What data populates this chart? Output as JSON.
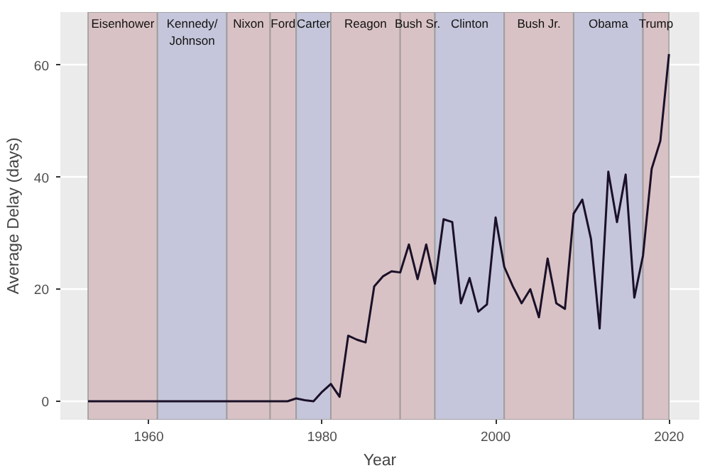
{
  "chart_data": {
    "type": "line",
    "xlabel": "Year",
    "ylabel": "Average Delay (days)",
    "x": [
      1953,
      1954,
      1955,
      1956,
      1957,
      1958,
      1959,
      1960,
      1961,
      1962,
      1963,
      1964,
      1965,
      1966,
      1967,
      1968,
      1969,
      1970,
      1971,
      1972,
      1973,
      1974,
      1975,
      1976,
      1977,
      1978,
      1979,
      1980,
      1981,
      1982,
      1983,
      1984,
      1985,
      1986,
      1987,
      1988,
      1989,
      1990,
      1991,
      1992,
      1993,
      1994,
      1995,
      1996,
      1997,
      1998,
      1999,
      2000,
      2001,
      2002,
      2003,
      2004,
      2005,
      2006,
      2007,
      2008,
      2009,
      2010,
      2011,
      2012,
      2013,
      2014,
      2015,
      2016,
      2017,
      2018,
      2019,
      2020
    ],
    "series": [
      {
        "color": "#1a1028",
        "values": [
          0,
          0,
          0,
          0,
          0,
          0,
          0,
          0,
          0,
          0,
          0,
          0,
          0,
          0,
          0,
          0,
          0,
          0,
          0,
          0,
          0,
          0,
          0,
          0,
          0.5,
          0.2,
          0,
          1.7,
          3.1,
          0.8,
          11.7,
          11,
          10.5,
          20.5,
          22.3,
          23.2,
          23,
          28,
          21.8,
          28,
          21,
          32.5,
          32,
          17.5,
          22,
          16,
          17.3,
          32.8,
          24,
          20.5,
          17.5,
          20,
          15,
          25.5,
          17.5,
          16.5,
          33.5,
          36,
          29,
          13,
          41,
          32,
          40.5,
          18.5,
          26,
          41.5,
          46.5,
          62
        ]
      }
    ],
    "xlim": [
      1949.8,
      2023.5
    ],
    "ylim": [
      -3.3,
      69.5
    ],
    "xticks": [
      1960,
      1980,
      2000,
      2020
    ],
    "yticks": [
      0,
      20,
      40,
      60
    ],
    "grid": true,
    "marker": "none",
    "line_style": "solid",
    "bands": [
      {
        "axis": "x",
        "from": 1953,
        "to": 1961,
        "label": "Eisenhower",
        "color": "#d9c2c5"
      },
      {
        "axis": "x",
        "from": 1961,
        "to": 1969,
        "label": "Kennedy/\nJohnson",
        "color": "#c5c6db"
      },
      {
        "axis": "x",
        "from": 1969,
        "to": 1974,
        "label": "Nixon",
        "color": "#d9c2c5"
      },
      {
        "axis": "x",
        "from": 1974,
        "to": 1977,
        "label": "Ford",
        "color": "#d9c2c5"
      },
      {
        "axis": "x",
        "from": 1977,
        "to": 1981,
        "label": "Carter",
        "color": "#c5c6db"
      },
      {
        "axis": "x",
        "from": 1981,
        "to": 1989,
        "label": "Reagon",
        "color": "#d9c2c5"
      },
      {
        "axis": "x",
        "from": 1989,
        "to": 1993,
        "label": "Bush Sr.",
        "color": "#d9c2c5"
      },
      {
        "axis": "x",
        "from": 1993,
        "to": 2001,
        "label": "Clinton",
        "color": "#c5c6db"
      },
      {
        "axis": "x",
        "from": 2001,
        "to": 2009,
        "label": "Bush Jr.",
        "color": "#d9c2c5"
      },
      {
        "axis": "x",
        "from": 2009,
        "to": 2017,
        "label": "Obama",
        "color": "#c5c6db"
      },
      {
        "axis": "x",
        "from": 2017,
        "to": 2020,
        "label": "Trump",
        "color": "#d9c2c5"
      }
    ]
  }
}
